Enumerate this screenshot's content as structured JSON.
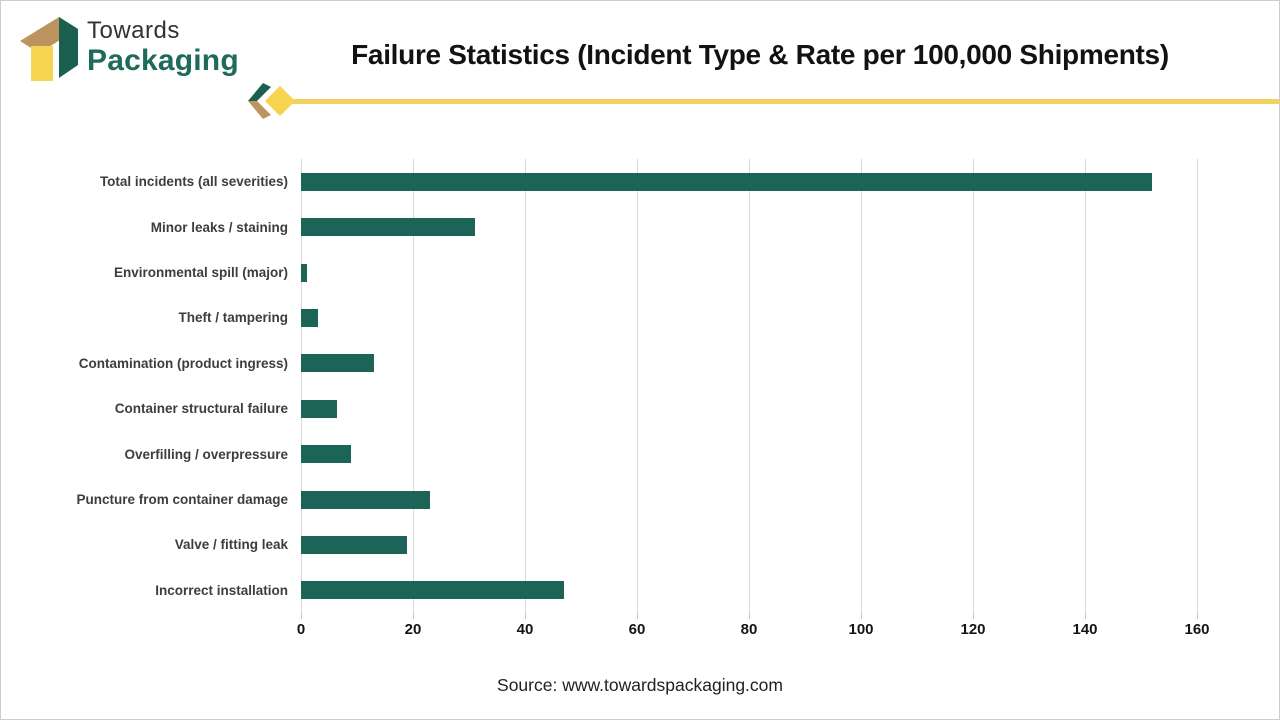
{
  "logo": {
    "line1": "Towards",
    "line2": "Packaging"
  },
  "header": {
    "title": "Failure Statistics (Incident Type & Rate per 100,000 Shipments)"
  },
  "footer": {
    "source": "Source: www.towardspackaging.com"
  },
  "colors": {
    "bar": "#1D6458",
    "gridline": "#D9D9D9",
    "accent_yellow": "#F2D15F",
    "diamond_yellow": "#F6D44F",
    "accent_tan": "#BD9460",
    "accent_green": "#1B604F",
    "title_text": "#121212",
    "label_text": "#3D3D3D"
  },
  "chart_data": {
    "type": "bar",
    "orientation": "horizontal",
    "title": "Failure Statistics (Incident Type & Rate per 100,000 Shipments)",
    "categories": [
      "Total incidents (all severities)",
      "Minor leaks / staining",
      "Environmental spill (major)",
      "Theft / tampering",
      "Contamination (product ingress)",
      "Container structural failure",
      "Overfilling / overpressure",
      "Puncture from container damage",
      "Valve / fitting leak",
      "Incorrect installation"
    ],
    "values": [
      152,
      31,
      1,
      3,
      13,
      6.5,
      9,
      23,
      19,
      47
    ],
    "x_ticks": [
      0,
      20,
      40,
      60,
      80,
      100,
      120,
      140,
      160
    ],
    "xlim": [
      0,
      162
    ],
    "grid": "vertical-only",
    "legend": "none",
    "bar_color": "#1D6458",
    "source": "Source: www.towardspackaging.com"
  }
}
